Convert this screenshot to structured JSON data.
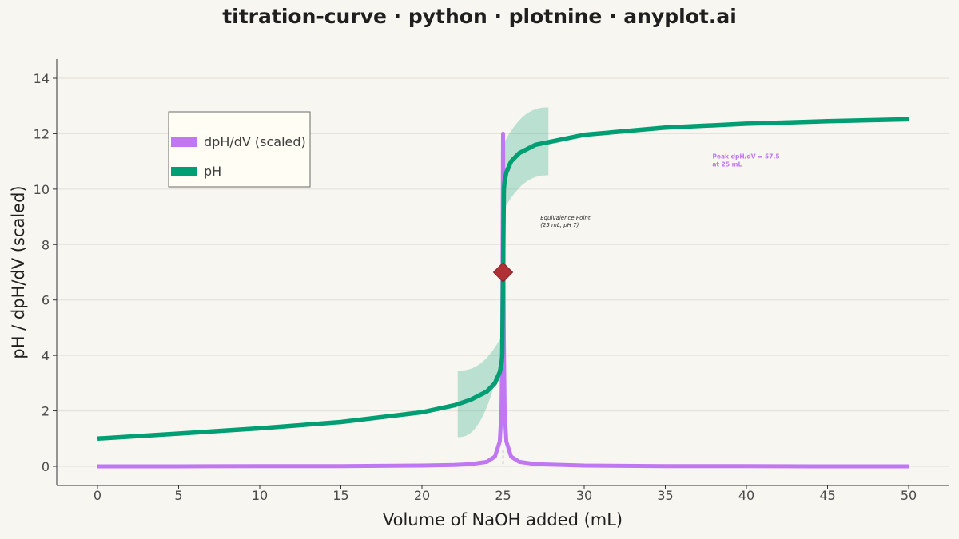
{
  "title": "titration-curve · python · plotnine · anyplot.ai",
  "chart_data": {
    "type": "line",
    "xlabel": "Volume of NaOH added (mL)",
    "ylabel": "pH / dpH/dV (scaled)",
    "xlim": [
      0,
      50
    ],
    "ylim": [
      0,
      14
    ],
    "x_ticks": [
      "0",
      "5",
      "10",
      "15",
      "20",
      "25",
      "30",
      "35",
      "40",
      "45",
      "50"
    ],
    "y_ticks": [
      "0",
      "2",
      "4",
      "6",
      "8",
      "10",
      "12",
      "14"
    ],
    "grid": true,
    "legend_position": "top-left",
    "equivalence_volume": 25,
    "series": [
      {
        "name": "dpH/dV (scaled)",
        "color": "#c077f2",
        "x": [
          0,
          5,
          10,
          15,
          20,
          22,
          23,
          24,
          24.5,
          24.8,
          24.9,
          24.95,
          25,
          25.05,
          25.1,
          25.2,
          25.5,
          26,
          27,
          30,
          35,
          40,
          45,
          50
        ],
        "values": [
          0,
          0,
          0.01,
          0.01,
          0.03,
          0.05,
          0.08,
          0.16,
          0.35,
          0.9,
          2.0,
          4.5,
          12.0,
          4.5,
          2.0,
          0.9,
          0.35,
          0.16,
          0.08,
          0.03,
          0.01,
          0.01,
          0,
          0
        ]
      },
      {
        "name": "pH",
        "color": "#009e73",
        "x": [
          0,
          5,
          10,
          15,
          20,
          22,
          23,
          24,
          24.5,
          24.8,
          24.9,
          24.95,
          25,
          25.05,
          25.1,
          25.2,
          25.5,
          26,
          27,
          30,
          35,
          40,
          45,
          50
        ],
        "values": [
          1.0,
          1.18,
          1.37,
          1.6,
          1.95,
          2.2,
          2.4,
          2.7,
          3.0,
          3.4,
          3.7,
          4.0,
          7.0,
          10.0,
          10.3,
          10.6,
          11.0,
          11.3,
          11.6,
          11.96,
          12.22,
          12.36,
          12.45,
          12.52
        ]
      }
    ],
    "bands": [
      {
        "x": [
          22.2,
          25
        ],
        "lower_start": 1.05,
        "lower_end": 4.2,
        "upper_start": 3.45,
        "upper_end": 4.8
      },
      {
        "x": [
          25,
          27.8
        ],
        "lower_start": 9.2,
        "lower_end": 10.5,
        "upper_start": 11.6,
        "upper_end": 12.95
      }
    ],
    "marker": {
      "x": 25,
      "y": 7,
      "color": "#b03036",
      "shape": "diamond"
    },
    "annotations": {
      "equivalence_line1": "Equivalence Point",
      "equivalence_line2": "(25 mL, pH 7)",
      "equivalence_x": 27.3,
      "equivalence_y": 8.9,
      "peak_line1": "Peak dpH/dV = 57.5",
      "peak_line2": "at 25 mL",
      "peak_x": 37.9,
      "peak_y": 11.1
    }
  }
}
